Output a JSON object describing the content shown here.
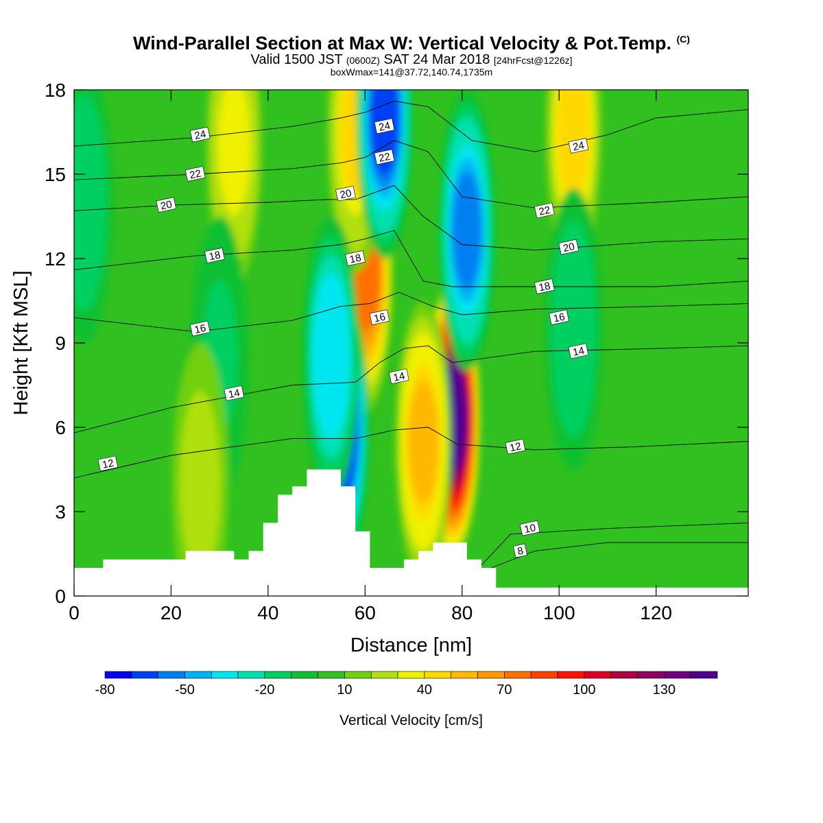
{
  "header": {
    "title": "Wind-Parallel Section at Max W: Vertical Velocity & Pot.Temp.",
    "copyright": "(C)",
    "valid_prefix": "Valid 1500 JST",
    "valid_utc": "(0600Z)",
    "valid_date": "SAT 24 Mar 2018",
    "forecast": "[24hrFcst@1226z]",
    "box_info": "boxWmax=141@37.72,140.74,1735m"
  },
  "chart_data": {
    "type": "heatmap",
    "xlabel": "Distance [nm]",
    "ylabel": "Height [Kft MSL]",
    "xlim": [
      0,
      139
    ],
    "ylim": [
      0,
      18
    ],
    "x_ticks": [
      0,
      20,
      40,
      60,
      80,
      100,
      120
    ],
    "y_ticks": [
      0,
      3,
      6,
      9,
      12,
      15,
      18
    ],
    "colorbar": {
      "label": "Vertical Velocity [cm/s]",
      "tick_labels": [
        "-80",
        "-50",
        "-20",
        "10",
        "40",
        "70",
        "100",
        "130"
      ],
      "levels": [
        -80,
        -70,
        -60,
        -50,
        -40,
        -30,
        -20,
        -10,
        0,
        10,
        20,
        30,
        40,
        50,
        60,
        70,
        80,
        90,
        100,
        110,
        120,
        130,
        140,
        150
      ],
      "colors": [
        "#0000f5",
        "#0040f5",
        "#0080f0",
        "#00b4f5",
        "#00e6f0",
        "#00e0b0",
        "#00d060",
        "#10c030",
        "#30c020",
        "#70d010",
        "#b0e010",
        "#f0f000",
        "#ffd800",
        "#ffb800",
        "#ff9800",
        "#ff7000",
        "#ff4000",
        "#ff1000",
        "#e00020",
        "#b00040",
        "#900060",
        "#700080",
        "#500090"
      ]
    },
    "terrain_kft": [
      [
        0,
        1.0
      ],
      [
        6,
        1.0
      ],
      [
        6,
        1.3
      ],
      [
        23,
        1.3
      ],
      [
        23,
        1.6
      ],
      [
        33,
        1.6
      ],
      [
        33,
        1.3
      ],
      [
        36,
        1.3
      ],
      [
        36,
        1.6
      ],
      [
        39,
        1.6
      ],
      [
        39,
        2.6
      ],
      [
        42,
        2.6
      ],
      [
        42,
        3.6
      ],
      [
        45,
        3.6
      ],
      [
        45,
        3.9
      ],
      [
        48,
        3.9
      ],
      [
        48,
        4.5
      ],
      [
        55,
        4.5
      ],
      [
        55,
        3.9
      ],
      [
        58,
        3.9
      ],
      [
        58,
        2.3
      ],
      [
        61,
        2.3
      ],
      [
        61,
        1.0
      ],
      [
        68,
        1.0
      ],
      [
        68,
        1.3
      ],
      [
        71,
        1.3
      ],
      [
        71,
        1.6
      ],
      [
        74,
        1.6
      ],
      [
        74,
        1.9
      ],
      [
        81,
        1.9
      ],
      [
        81,
        1.3
      ],
      [
        84,
        1.3
      ],
      [
        84,
        1.0
      ],
      [
        87,
        1.0
      ],
      [
        87,
        0.3
      ],
      [
        139,
        0.3
      ]
    ],
    "velocity_features": [
      {
        "x": 78,
        "y": 6.3,
        "value": 141
      },
      {
        "x": 72,
        "y": 5.5,
        "value": 55
      },
      {
        "x": 60,
        "y": 11.5,
        "value": 70
      },
      {
        "x": 58,
        "y": 16.5,
        "value": 45
      },
      {
        "x": 55,
        "y": 6.0,
        "value": -70
      },
      {
        "x": 64,
        "y": 17.0,
        "value": -65
      },
      {
        "x": 81,
        "y": 13.0,
        "value": -55
      },
      {
        "x": 53,
        "y": 8.5,
        "value": -40
      },
      {
        "x": 103,
        "y": 16.5,
        "value": 40
      },
      {
        "x": 33,
        "y": 16.0,
        "value": 35
      },
      {
        "x": 103,
        "y": 9.5,
        "value": -20
      },
      {
        "x": 30,
        "y": 8.5,
        "value": -15
      },
      {
        "x": 2,
        "y": 14.0,
        "value": -20
      },
      {
        "x": 26,
        "y": 4.0,
        "value": 20
      }
    ],
    "theta_contours": [
      {
        "label": "8",
        "points": [
          [
            86,
            1.0
          ],
          [
            95,
            1.6
          ],
          [
            110,
            1.9
          ],
          [
            139,
            1.9
          ]
        ],
        "labels_at": [
          [
            92,
            1.6
          ]
        ]
      },
      {
        "label": "10",
        "points": [
          [
            84,
            1.1
          ],
          [
            90,
            2.2
          ],
          [
            110,
            2.4
          ],
          [
            139,
            2.6
          ]
        ],
        "labels_at": [
          [
            94,
            2.4
          ]
        ]
      },
      {
        "label": "12",
        "points": [
          [
            0,
            4.2
          ],
          [
            20,
            5.0
          ],
          [
            45,
            5.6
          ],
          [
            58,
            5.6
          ],
          [
            66,
            5.9
          ],
          [
            73,
            6.0
          ],
          [
            79,
            5.4
          ],
          [
            95,
            5.2
          ],
          [
            115,
            5.3
          ],
          [
            139,
            5.5
          ]
        ],
        "labels_at": [
          [
            7,
            4.7
          ],
          [
            91,
            5.3
          ]
        ]
      },
      {
        "label": "14",
        "points": [
          [
            0,
            5.8
          ],
          [
            20,
            6.7
          ],
          [
            45,
            7.5
          ],
          [
            58,
            7.6
          ],
          [
            63,
            8.3
          ],
          [
            68,
            8.8
          ],
          [
            73,
            8.9
          ],
          [
            78,
            8.3
          ],
          [
            95,
            8.7
          ],
          [
            120,
            8.8
          ],
          [
            139,
            8.9
          ]
        ],
        "labels_at": [
          [
            33,
            7.2
          ],
          [
            67,
            7.8
          ],
          [
            104,
            8.7
          ]
        ]
      },
      {
        "label": "16",
        "points": [
          [
            0,
            9.9
          ],
          [
            25,
            9.4
          ],
          [
            45,
            9.8
          ],
          [
            55,
            10.3
          ],
          [
            61,
            10.4
          ],
          [
            67,
            10.8
          ],
          [
            74,
            10.3
          ],
          [
            80,
            10.0
          ],
          [
            95,
            10.2
          ],
          [
            120,
            10.3
          ],
          [
            139,
            10.4
          ]
        ],
        "labels_at": [
          [
            26,
            9.5
          ],
          [
            63,
            9.9
          ],
          [
            100,
            9.9
          ]
        ]
      },
      {
        "label": "18",
        "points": [
          [
            0,
            11.6
          ],
          [
            25,
            12.1
          ],
          [
            45,
            12.3
          ],
          [
            55,
            12.5
          ],
          [
            60,
            12.7
          ],
          [
            66,
            13.0
          ],
          [
            72,
            11.2
          ],
          [
            78,
            11.0
          ],
          [
            95,
            11.0
          ],
          [
            120,
            11.0
          ],
          [
            139,
            11.2
          ]
        ],
        "labels_at": [
          [
            29,
            12.1
          ],
          [
            58,
            12.0
          ],
          [
            97,
            11.0
          ]
        ]
      },
      {
        "label": "20",
        "points": [
          [
            0,
            13.7
          ],
          [
            20,
            13.9
          ],
          [
            40,
            14.0
          ],
          [
            52,
            14.1
          ],
          [
            58,
            14.1
          ],
          [
            66,
            14.6
          ],
          [
            72,
            13.5
          ],
          [
            80,
            12.5
          ],
          [
            95,
            12.3
          ],
          [
            120,
            12.6
          ],
          [
            139,
            12.7
          ]
        ],
        "labels_at": [
          [
            19,
            13.9
          ],
          [
            56,
            14.3
          ],
          [
            102,
            12.4
          ]
        ]
      },
      {
        "label": "22",
        "points": [
          [
            0,
            14.8
          ],
          [
            25,
            15.0
          ],
          [
            45,
            15.2
          ],
          [
            55,
            15.4
          ],
          [
            60,
            15.6
          ],
          [
            66,
            16.2
          ],
          [
            73,
            15.8
          ],
          [
            80,
            14.2
          ],
          [
            95,
            13.8
          ],
          [
            120,
            14.0
          ],
          [
            139,
            14.2
          ]
        ],
        "labels_at": [
          [
            25,
            15.0
          ],
          [
            64,
            15.6
          ],
          [
            97,
            13.7
          ]
        ]
      },
      {
        "label": "24",
        "points": [
          [
            0,
            16.0
          ],
          [
            25,
            16.3
          ],
          [
            45,
            16.7
          ],
          [
            55,
            17.0
          ],
          [
            60,
            17.2
          ],
          [
            66,
            17.6
          ],
          [
            73,
            17.4
          ],
          [
            82,
            16.2
          ],
          [
            95,
            15.8
          ],
          [
            110,
            16.4
          ],
          [
            120,
            17.0
          ],
          [
            139,
            17.3
          ]
        ],
        "labels_at": [
          [
            26,
            16.4
          ],
          [
            64,
            16.7
          ],
          [
            104,
            16.0
          ]
        ]
      }
    ]
  }
}
